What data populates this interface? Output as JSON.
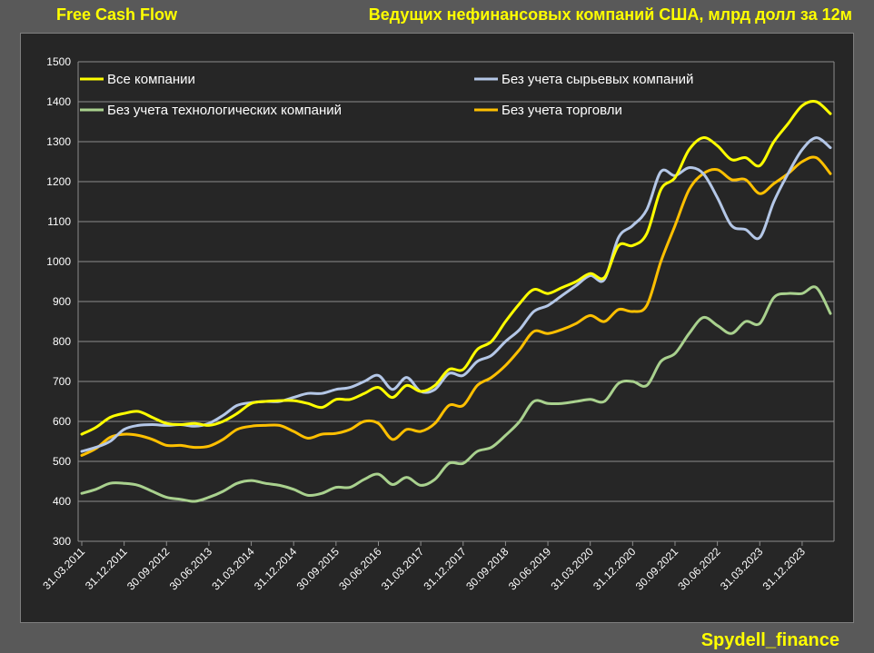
{
  "header": {
    "title_left": "Free Cash Flow",
    "title_right": "Ведущих нефинансовых компаний США, млрд долл за 12м",
    "watermark": "Spydell_finance"
  },
  "chart_data": {
    "type": "line",
    "ylim": [
      300,
      1500
    ],
    "yticks": [
      300,
      400,
      500,
      600,
      700,
      800,
      900,
      1000,
      1100,
      1200,
      1300,
      1400,
      1500
    ],
    "xticks": [
      "31.03.2011",
      "31.12.2011",
      "30.09.2012",
      "30.06.2013",
      "31.03.2014",
      "31.12.2014",
      "30.09.2015",
      "30.06.2016",
      "31.03.2017",
      "31.12.2017",
      "30.09.2018",
      "30.06.2019",
      "31.03.2020",
      "31.12.2020",
      "30.09.2021",
      "30.06.2022",
      "31.03.2023",
      "31.12.2023"
    ],
    "grid": true,
    "legend_placement": "top",
    "series": [
      {
        "name": "Все компании",
        "color": "#ffff00",
        "values": [
          568,
          585,
          610,
          620,
          625,
          610,
          595,
          592,
          595,
          590,
          600,
          620,
          645,
          650,
          652,
          652,
          645,
          635,
          655,
          655,
          670,
          685,
          660,
          690,
          675,
          690,
          730,
          730,
          780,
          800,
          850,
          895,
          930,
          920,
          935,
          950,
          970,
          960,
          1040,
          1040,
          1070,
          1180,
          1210,
          1280,
          1310,
          1290,
          1255,
          1260,
          1240,
          1300,
          1345,
          1390,
          1400,
          1370
        ]
      },
      {
        "name": "Без учета сырьевых компаний",
        "color": "#b4c7e7",
        "values": [
          525,
          535,
          550,
          580,
          590,
          592,
          590,
          592,
          588,
          595,
          615,
          640,
          647,
          650,
          650,
          660,
          670,
          670,
          680,
          685,
          700,
          715,
          680,
          710,
          675,
          680,
          720,
          715,
          750,
          765,
          800,
          830,
          875,
          890,
          915,
          940,
          965,
          955,
          1060,
          1090,
          1130,
          1225,
          1215,
          1235,
          1220,
          1160,
          1090,
          1080,
          1060,
          1150,
          1220,
          1280,
          1310,
          1285
        ]
      },
      {
        "name": "Без учета технологических компаний",
        "color": "#a9d18e",
        "values": [
          420,
          430,
          445,
          445,
          440,
          425,
          410,
          405,
          400,
          410,
          425,
          445,
          452,
          445,
          440,
          430,
          415,
          420,
          435,
          435,
          455,
          468,
          442,
          460,
          440,
          455,
          495,
          495,
          525,
          535,
          565,
          600,
          650,
          645,
          645,
          650,
          655,
          650,
          695,
          700,
          690,
          750,
          770,
          820,
          860,
          840,
          820,
          850,
          845,
          910,
          920,
          920,
          935,
          870
        ]
      },
      {
        "name": "Без учета торговли",
        "color": "#ffc000",
        "values": [
          515,
          532,
          560,
          568,
          565,
          555,
          540,
          540,
          535,
          538,
          555,
          580,
          588,
          590,
          590,
          575,
          558,
          568,
          570,
          580,
          600,
          595,
          555,
          580,
          575,
          595,
          640,
          640,
          690,
          710,
          740,
          780,
          825,
          820,
          830,
          845,
          865,
          850,
          880,
          875,
          890,
          1000,
          1090,
          1180,
          1220,
          1230,
          1205,
          1205,
          1170,
          1195,
          1220,
          1250,
          1260,
          1220
        ]
      }
    ]
  }
}
